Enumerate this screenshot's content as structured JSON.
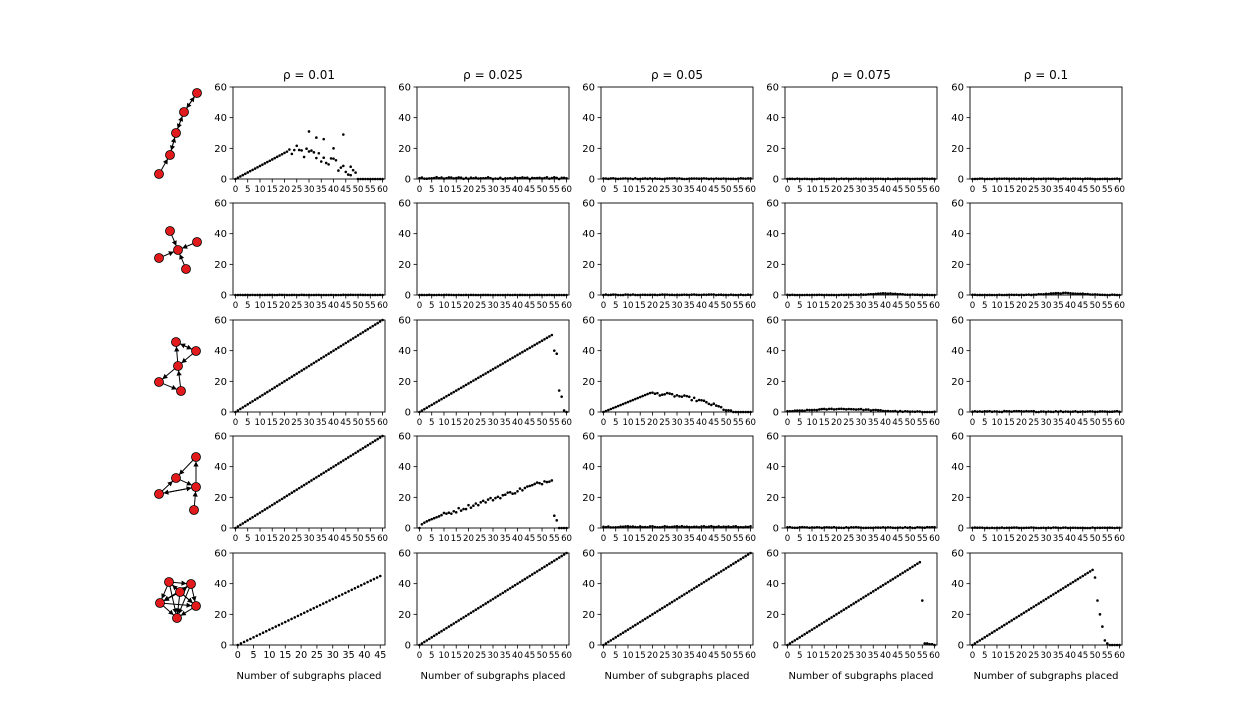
{
  "figure": {
    "column_titles": [
      "ρ = 0.01",
      "ρ = 0.025",
      "ρ = 0.05",
      "ρ = 0.075",
      "ρ = 0.1"
    ],
    "xlabel": "Number of subgraphs placed",
    "colors": {
      "points": "#000000",
      "node_fill": "#e31a1c",
      "node_edge": "#000000"
    },
    "row_motifs": [
      "chain-graph-icon",
      "star-graph-icon",
      "cyclic-graph-icon",
      "branched-graph-icon",
      "dense-graph-icon"
    ]
  },
  "chart_data": [
    {
      "type": "scatter",
      "row": 0,
      "col": 0,
      "series": "chain",
      "x_max": 60,
      "profile": {
        "kind": "hump",
        "slope": 0.85,
        "peak": 18,
        "end": 50,
        "scatter": 8,
        "outliers": [
          [
            30,
            31
          ],
          [
            33,
            27
          ],
          [
            36,
            26
          ],
          [
            40,
            20
          ],
          [
            44,
            29
          ],
          [
            47,
            8
          ]
        ]
      },
      "xlim": [
        -1,
        61
      ],
      "ylim": [
        0,
        60
      ],
      "xticks": [
        0,
        5,
        10,
        15,
        20,
        25,
        30,
        35,
        40,
        45,
        50,
        55,
        60
      ],
      "yticks": [
        0,
        20,
        40,
        60
      ]
    },
    {
      "type": "scatter",
      "row": 0,
      "col": 1,
      "series": "chain",
      "x_max": 60,
      "profile": {
        "kind": "flat",
        "level": 0.6,
        "noise": 1.2
      },
      "xlim": [
        -1,
        61
      ],
      "ylim": [
        0,
        60
      ],
      "xticks": [
        0,
        5,
        10,
        15,
        20,
        25,
        30,
        35,
        40,
        45,
        50,
        55,
        60
      ],
      "yticks": [
        0,
        20,
        40,
        60
      ]
    },
    {
      "type": "scatter",
      "row": 0,
      "col": 2,
      "series": "chain",
      "x_max": 60,
      "profile": {
        "kind": "flat",
        "level": 0.2,
        "noise": 0.5
      },
      "xlim": [
        -1,
        61
      ],
      "ylim": [
        0,
        60
      ],
      "xticks": [
        0,
        5,
        10,
        15,
        20,
        25,
        30,
        35,
        40,
        45,
        50,
        55,
        60
      ],
      "yticks": [
        0,
        20,
        40,
        60
      ]
    },
    {
      "type": "scatter",
      "row": 0,
      "col": 3,
      "series": "chain",
      "x_max": 60,
      "profile": {
        "kind": "flat",
        "level": 0.1,
        "noise": 0.3
      },
      "xlim": [
        -1,
        61
      ],
      "ylim": [
        0,
        60
      ],
      "xticks": [
        0,
        5,
        10,
        15,
        20,
        25,
        30,
        35,
        40,
        45,
        50,
        55,
        60
      ],
      "yticks": [
        0,
        20,
        40,
        60
      ]
    },
    {
      "type": "scatter",
      "row": 0,
      "col": 4,
      "series": "chain",
      "x_max": 60,
      "profile": {
        "kind": "flat",
        "level": 0.1,
        "noise": 0.3
      },
      "xlim": [
        -1,
        61
      ],
      "ylim": [
        0,
        60
      ],
      "xticks": [
        0,
        5,
        10,
        15,
        20,
        25,
        30,
        35,
        40,
        45,
        50,
        55,
        60
      ],
      "yticks": [
        0,
        20,
        40,
        60
      ]
    },
    {
      "type": "scatter",
      "row": 1,
      "col": 0,
      "series": "star",
      "x_max": 60,
      "profile": {
        "kind": "flat",
        "level": 0.0,
        "noise": 0.2
      },
      "xlim": [
        -1,
        61
      ],
      "ylim": [
        0,
        60
      ],
      "xticks": [
        0,
        5,
        10,
        15,
        20,
        25,
        30,
        35,
        40,
        45,
        50,
        55,
        60
      ],
      "yticks": [
        0,
        20,
        40,
        60
      ]
    },
    {
      "type": "scatter",
      "row": 1,
      "col": 1,
      "series": "star",
      "x_max": 60,
      "profile": {
        "kind": "flat",
        "level": 0.0,
        "noise": 0.2
      },
      "xlim": [
        -1,
        61
      ],
      "ylim": [
        0,
        60
      ],
      "xticks": [
        0,
        5,
        10,
        15,
        20,
        25,
        30,
        35,
        40,
        45,
        50,
        55,
        60
      ],
      "yticks": [
        0,
        20,
        40,
        60
      ]
    },
    {
      "type": "scatter",
      "row": 1,
      "col": 2,
      "series": "star",
      "x_max": 60,
      "profile": {
        "kind": "flat",
        "level": 0.1,
        "noise": 0.4
      },
      "xlim": [
        -1,
        61
      ],
      "ylim": [
        0,
        60
      ],
      "xticks": [
        0,
        5,
        10,
        15,
        20,
        25,
        30,
        35,
        40,
        45,
        50,
        55,
        60
      ],
      "yticks": [
        0,
        20,
        40,
        60
      ]
    },
    {
      "type": "scatter",
      "row": 1,
      "col": 3,
      "series": "star",
      "x_max": 60,
      "profile": {
        "kind": "bump",
        "center": 40,
        "width": 8,
        "height": 1.0,
        "noise": 0.3
      },
      "xlim": [
        -1,
        61
      ],
      "ylim": [
        0,
        60
      ],
      "xticks": [
        0,
        5,
        10,
        15,
        20,
        25,
        30,
        35,
        40,
        45,
        50,
        55,
        60
      ],
      "yticks": [
        0,
        20,
        40,
        60
      ]
    },
    {
      "type": "scatter",
      "row": 1,
      "col": 4,
      "series": "star",
      "x_max": 60,
      "profile": {
        "kind": "bump",
        "center": 38,
        "width": 10,
        "height": 1.2,
        "noise": 0.4
      },
      "xlim": [
        -1,
        61
      ],
      "ylim": [
        0,
        60
      ],
      "xticks": [
        0,
        5,
        10,
        15,
        20,
        25,
        30,
        35,
        40,
        45,
        50,
        55,
        60
      ],
      "yticks": [
        0,
        20,
        40,
        60
      ]
    },
    {
      "type": "scatter",
      "row": 2,
      "col": 0,
      "series": "cyclic",
      "x_max": 60,
      "profile": {
        "kind": "linear",
        "slope": 1.0
      },
      "xlim": [
        -1,
        61
      ],
      "ylim": [
        0,
        60
      ],
      "xticks": [
        0,
        5,
        10,
        15,
        20,
        25,
        30,
        35,
        40,
        45,
        50,
        55,
        60
      ],
      "yticks": [
        0,
        20,
        40,
        60
      ]
    },
    {
      "type": "scatter",
      "row": 2,
      "col": 1,
      "series": "cyclic",
      "x_max": 60,
      "profile": {
        "kind": "linear_drop",
        "slope": 0.93,
        "drop_at": 54,
        "tail": [
          [
            55,
            40
          ],
          [
            56,
            38
          ],
          [
            57,
            14
          ],
          [
            58,
            10
          ],
          [
            59,
            1
          ],
          [
            60,
            0
          ]
        ]
      },
      "xlim": [
        -1,
        61
      ],
      "ylim": [
        0,
        60
      ],
      "xticks": [
        0,
        5,
        10,
        15,
        20,
        25,
        30,
        35,
        40,
        45,
        50,
        55,
        60
      ],
      "yticks": [
        0,
        20,
        40,
        60
      ]
    },
    {
      "type": "scatter",
      "row": 2,
      "col": 2,
      "series": "cyclic",
      "x_max": 60,
      "profile": {
        "kind": "hump",
        "slope": 0.65,
        "peak": 12,
        "end": 52,
        "scatter": 2
      },
      "xlim": [
        -1,
        61
      ],
      "ylim": [
        0,
        60
      ],
      "xticks": [
        0,
        5,
        10,
        15,
        20,
        25,
        30,
        35,
        40,
        45,
        50,
        55,
        60
      ],
      "yticks": [
        0,
        20,
        40,
        60
      ]
    },
    {
      "type": "scatter",
      "row": 2,
      "col": 3,
      "series": "cyclic",
      "x_max": 60,
      "profile": {
        "kind": "bump",
        "center": 22,
        "width": 18,
        "height": 2.0,
        "noise": 0.6
      },
      "xlim": [
        -1,
        61
      ],
      "ylim": [
        0,
        60
      ],
      "xticks": [
        0,
        5,
        10,
        15,
        20,
        25,
        30,
        35,
        40,
        45,
        50,
        55,
        60
      ],
      "yticks": [
        0,
        20,
        40,
        60
      ]
    },
    {
      "type": "scatter",
      "row": 2,
      "col": 4,
      "series": "cyclic",
      "x_max": 60,
      "profile": {
        "kind": "flat",
        "level": 0.3,
        "noise": 0.6
      },
      "xlim": [
        -1,
        61
      ],
      "ylim": [
        0,
        60
      ],
      "xticks": [
        0,
        5,
        10,
        15,
        20,
        25,
        30,
        35,
        40,
        45,
        50,
        55,
        60
      ],
      "yticks": [
        0,
        20,
        40,
        60
      ]
    },
    {
      "type": "scatter",
      "row": 3,
      "col": 0,
      "series": "branched",
      "x_max": 60,
      "profile": {
        "kind": "linear",
        "slope": 1.0
      },
      "xlim": [
        -1,
        61
      ],
      "ylim": [
        0,
        60
      ],
      "xticks": [
        0,
        5,
        10,
        15,
        20,
        25,
        30,
        35,
        40,
        45,
        50,
        55,
        60
      ],
      "yticks": [
        0,
        20,
        40,
        60
      ]
    },
    {
      "type": "scatter",
      "row": 3,
      "col": 1,
      "series": "branched",
      "x_max": 60,
      "profile": {
        "kind": "concave_drop",
        "max": 32,
        "drop_at": 54,
        "scatter": 2.5,
        "tail": [
          [
            55,
            8
          ],
          [
            56,
            5
          ],
          [
            57,
            0
          ],
          [
            58,
            0
          ],
          [
            59,
            0
          ],
          [
            60,
            0
          ]
        ]
      },
      "xlim": [
        -1,
        61
      ],
      "ylim": [
        0,
        60
      ],
      "xticks": [
        0,
        5,
        10,
        15,
        20,
        25,
        30,
        35,
        40,
        45,
        50,
        55,
        60
      ],
      "yticks": [
        0,
        20,
        40,
        60
      ]
    },
    {
      "type": "scatter",
      "row": 3,
      "col": 2,
      "series": "branched",
      "x_max": 60,
      "profile": {
        "kind": "flat",
        "level": 0.8,
        "noise": 0.8
      },
      "xlim": [
        -1,
        61
      ],
      "ylim": [
        0,
        60
      ],
      "xticks": [
        0,
        5,
        10,
        15,
        20,
        25,
        30,
        35,
        40,
        45,
        50,
        55,
        60
      ],
      "yticks": [
        0,
        20,
        40,
        60
      ]
    },
    {
      "type": "scatter",
      "row": 3,
      "col": 3,
      "series": "branched",
      "x_max": 60,
      "profile": {
        "kind": "flat",
        "level": 0.3,
        "noise": 0.5
      },
      "xlim": [
        -1,
        61
      ],
      "ylim": [
        0,
        60
      ],
      "xticks": [
        0,
        5,
        10,
        15,
        20,
        25,
        30,
        35,
        40,
        45,
        50,
        55,
        60
      ],
      "yticks": [
        0,
        20,
        40,
        60
      ]
    },
    {
      "type": "scatter",
      "row": 3,
      "col": 4,
      "series": "branched",
      "x_max": 60,
      "profile": {
        "kind": "flat",
        "level": 0.1,
        "noise": 0.4
      },
      "xlim": [
        -1,
        61
      ],
      "ylim": [
        0,
        60
      ],
      "xticks": [
        0,
        5,
        10,
        15,
        20,
        25,
        30,
        35,
        40,
        45,
        50,
        55,
        60
      ],
      "yticks": [
        0,
        20,
        40,
        60
      ]
    },
    {
      "type": "scatter",
      "row": 4,
      "col": 0,
      "series": "dense",
      "x_max": 45,
      "profile": {
        "kind": "linear",
        "slope": 1.0
      },
      "xlim": [
        -1.5,
        46.5
      ],
      "ylim": [
        0,
        60
      ],
      "xticks": [
        0,
        5,
        10,
        15,
        20,
        25,
        30,
        35,
        40,
        45
      ],
      "yticks": [
        0,
        20,
        40,
        60
      ]
    },
    {
      "type": "scatter",
      "row": 4,
      "col": 1,
      "series": "dense",
      "x_max": 60,
      "profile": {
        "kind": "linear",
        "slope": 1.0
      },
      "xlim": [
        -1,
        61
      ],
      "ylim": [
        0,
        60
      ],
      "xticks": [
        0,
        5,
        10,
        15,
        20,
        25,
        30,
        35,
        40,
        45,
        50,
        55,
        60
      ],
      "yticks": [
        0,
        20,
        40,
        60
      ]
    },
    {
      "type": "scatter",
      "row": 4,
      "col": 2,
      "series": "dense",
      "x_max": 60,
      "profile": {
        "kind": "linear",
        "slope": 1.0
      },
      "xlim": [
        -1,
        61
      ],
      "ylim": [
        0,
        60
      ],
      "xticks": [
        0,
        5,
        10,
        15,
        20,
        25,
        30,
        35,
        40,
        45,
        50,
        55,
        60
      ],
      "yticks": [
        0,
        20,
        40,
        60
      ]
    },
    {
      "type": "scatter",
      "row": 4,
      "col": 3,
      "series": "dense",
      "x_max": 60,
      "profile": {
        "kind": "linear_drop",
        "slope": 1.0,
        "drop_at": 54,
        "tail": [
          [
            55,
            29
          ],
          [
            56,
            1
          ],
          [
            57,
            1
          ],
          [
            58,
            0.5
          ],
          [
            59,
            0.5
          ],
          [
            60,
            0
          ]
        ]
      },
      "xlim": [
        -1,
        61
      ],
      "ylim": [
        0,
        60
      ],
      "xticks": [
        0,
        5,
        10,
        15,
        20,
        25,
        30,
        35,
        40,
        45,
        50,
        55,
        60
      ],
      "yticks": [
        0,
        20,
        40,
        60
      ]
    },
    {
      "type": "scatter",
      "row": 4,
      "col": 4,
      "series": "dense",
      "x_max": 60,
      "profile": {
        "kind": "linear_drop",
        "slope": 1.0,
        "drop_at": 49,
        "tail": [
          [
            50,
            44
          ],
          [
            51,
            29
          ],
          [
            52,
            20
          ],
          [
            53,
            12
          ],
          [
            54,
            3
          ],
          [
            55,
            1
          ],
          [
            56,
            0
          ],
          [
            57,
            0
          ],
          [
            58,
            0
          ],
          [
            59,
            0
          ],
          [
            60,
            0
          ]
        ]
      },
      "xlim": [
        -1,
        61
      ],
      "ylim": [
        0,
        60
      ],
      "xticks": [
        0,
        5,
        10,
        15,
        20,
        25,
        30,
        35,
        40,
        45,
        50,
        55,
        60
      ],
      "yticks": [
        0,
        20,
        40,
        60
      ]
    }
  ]
}
